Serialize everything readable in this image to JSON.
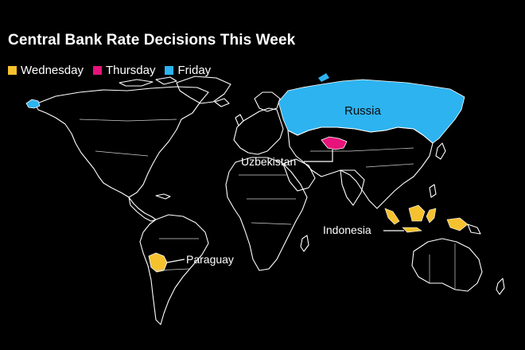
{
  "title": "Central Bank Rate Decisions This Week",
  "legend": {
    "items": [
      {
        "label": "Wednesday",
        "color": "#f5c12e"
      },
      {
        "label": "Thursday",
        "color": "#e8137a"
      },
      {
        "label": "Friday",
        "color": "#2db3f0"
      }
    ]
  },
  "colors": {
    "background": "#000000",
    "outline": "#ffffff",
    "wednesday": "#f5c12e",
    "thursday": "#e8137a",
    "friday": "#2db3f0"
  },
  "countries": [
    {
      "name": "Russia",
      "day": "Friday"
    },
    {
      "name": "Uzbekistan",
      "day": "Thursday"
    },
    {
      "name": "Indonesia",
      "day": "Wednesday"
    },
    {
      "name": "Paraguay",
      "day": "Wednesday"
    }
  ]
}
